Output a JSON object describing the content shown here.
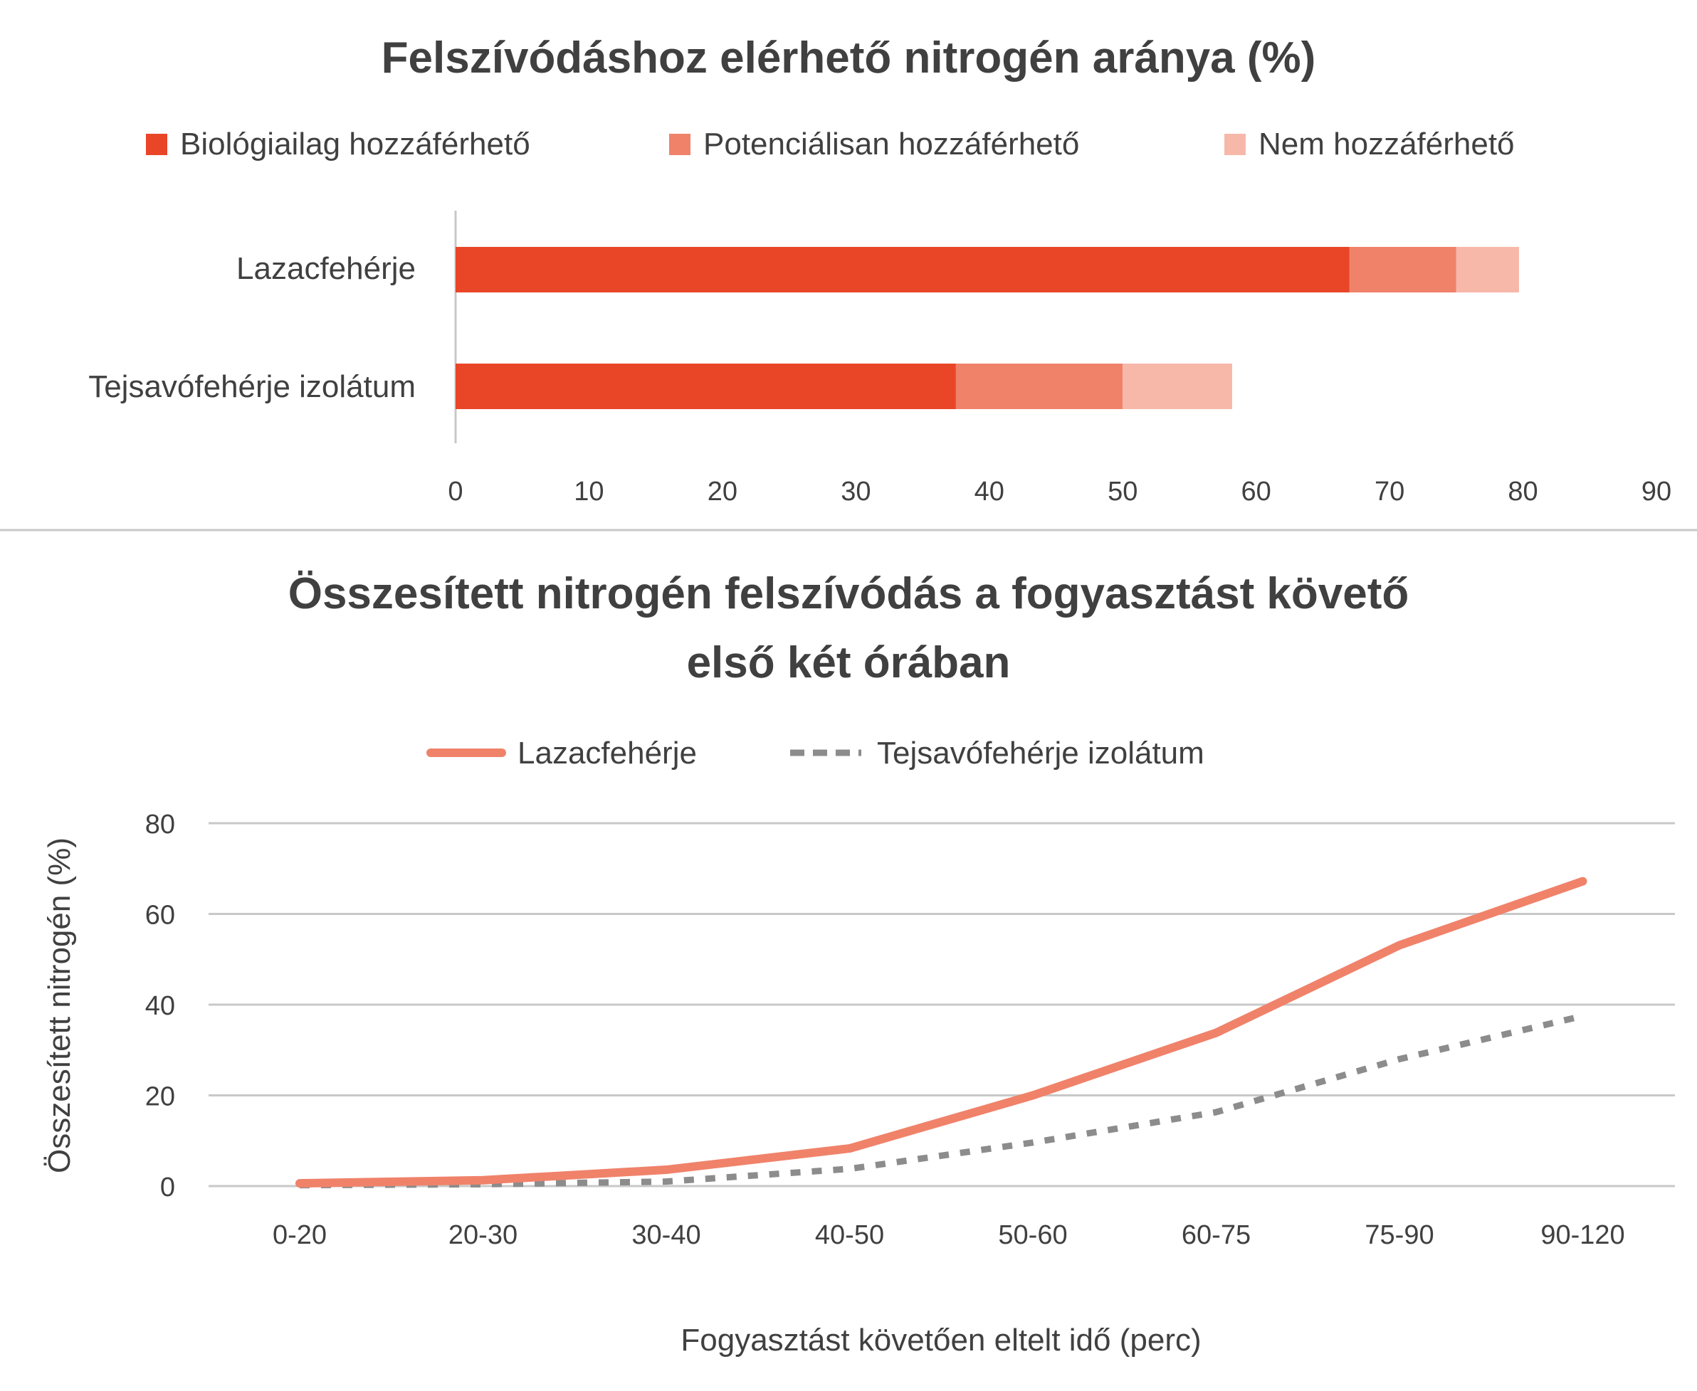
{
  "chart_data": [
    {
      "type": "bar",
      "orientation": "horizontal",
      "stacked": true,
      "title": "Felszívódáshoz elérhető nitrogén aránya  (%)",
      "categories": [
        "Lazacfehérje",
        "Tejsavófehérje izolátum"
      ],
      "series": [
        {
          "name": "Biológiailag hozzáférhető",
          "color": "#E94628",
          "values": [
            67.0,
            37.5
          ]
        },
        {
          "name": "Potenciálisan hozzáférhető",
          "color": "#F0826A",
          "values": [
            8.0,
            12.5
          ]
        },
        {
          "name": "Nem hozzáférhető",
          "color": "#F7B8AA",
          "values": [
            4.7,
            8.2
          ]
        }
      ],
      "xlim": [
        0,
        90
      ],
      "xticks": [
        "0",
        "10",
        "20",
        "30",
        "40",
        "50",
        "60",
        "70",
        "80",
        "90"
      ],
      "legend_position": "top"
    },
    {
      "type": "line",
      "title_lines": [
        "Összesített nitrogén felszívódás a fogyasztást követő",
        "első két órában"
      ],
      "categories": [
        "0-20",
        "20-30",
        "30-40",
        "40-50",
        "50-60",
        "60-75",
        "75-90",
        "90-120"
      ],
      "series": [
        {
          "name": "Lazacfehérje",
          "color": "#F0826A",
          "style": "solid",
          "values": [
            0.6,
            1.3,
            3.6,
            8.3,
            20.0,
            33.8,
            53.1,
            67.2
          ]
        },
        {
          "name": "Tejsavófehérje izolátum",
          "color": "#8C8C8C",
          "style": "dashed",
          "values": [
            0.2,
            0.4,
            1.0,
            3.8,
            9.6,
            16.3,
            28.0,
            37.5
          ]
        }
      ],
      "ylim": [
        0,
        80
      ],
      "yticks": [
        "0",
        "20",
        "40",
        "60",
        "80"
      ],
      "xlabel": "Fogyasztást követően eltelt idő (perc)",
      "ylabel": "Összesített nitrogén (%)",
      "grid": true,
      "legend_position": "top"
    }
  ]
}
